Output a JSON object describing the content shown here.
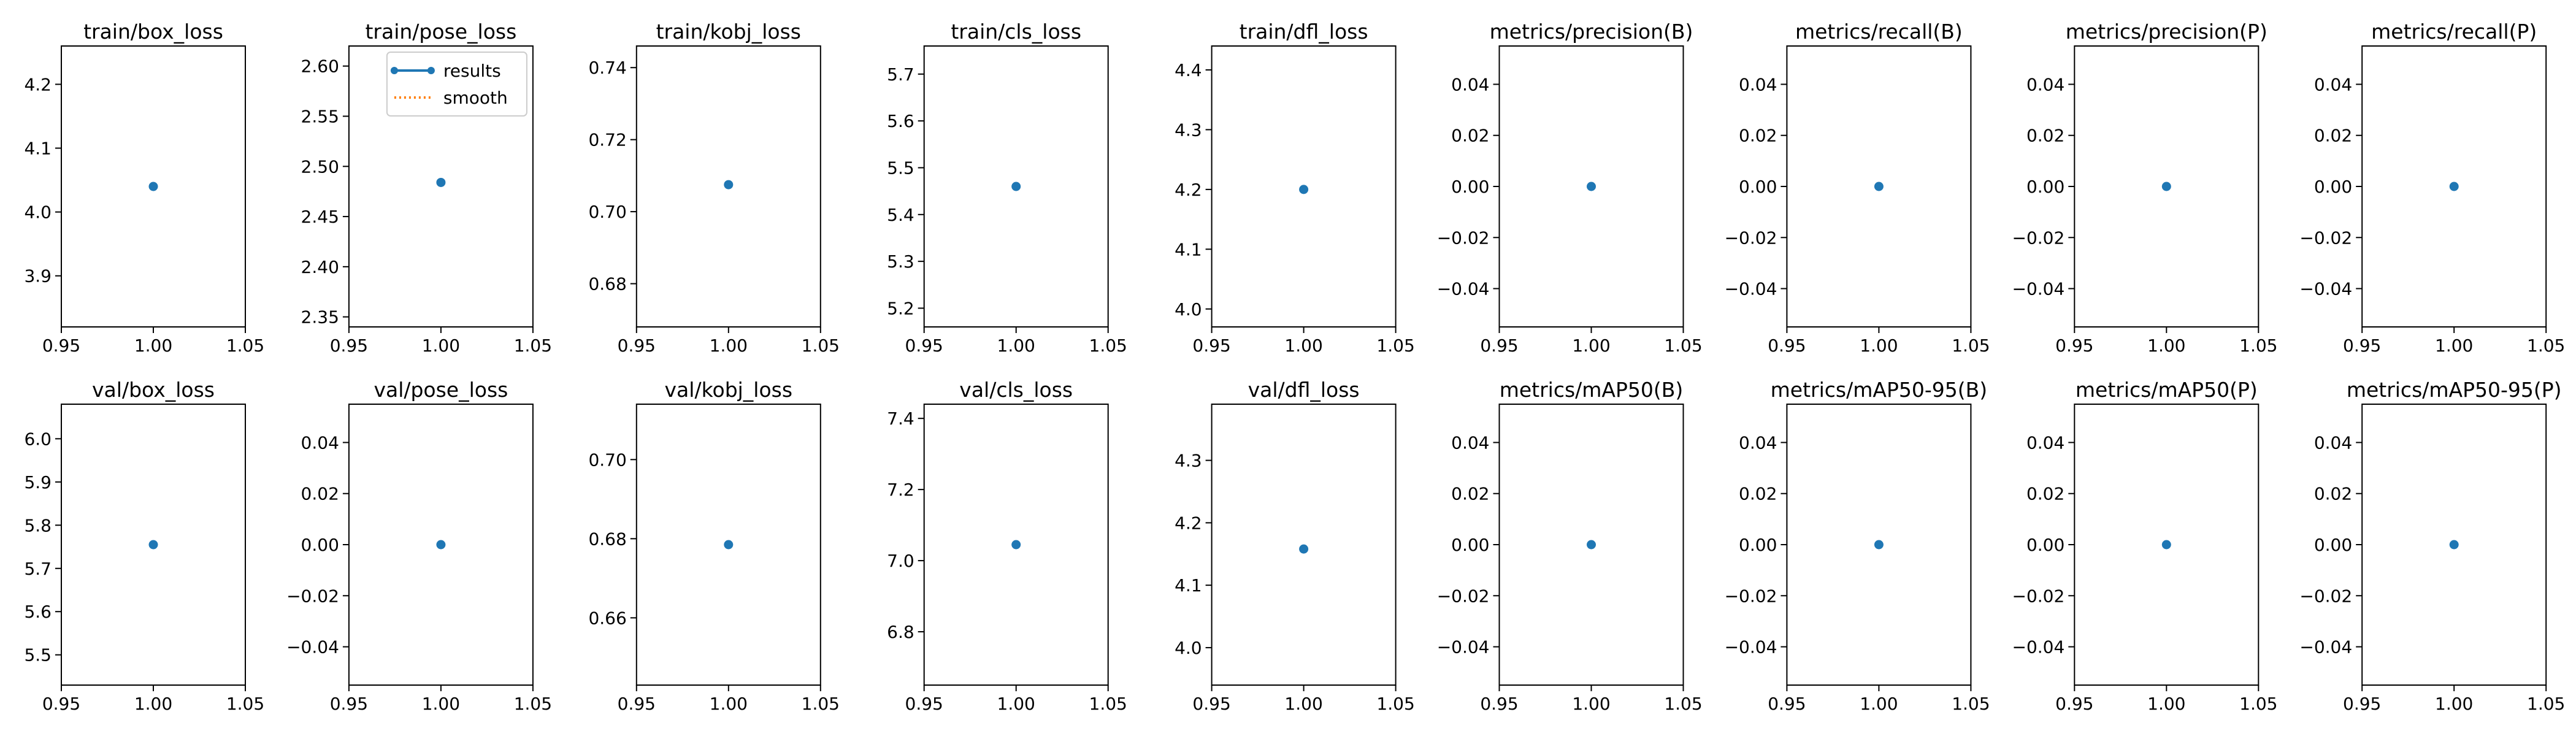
{
  "colors": {
    "results": "#1f77b4",
    "smooth": "#ff7f0e"
  },
  "legend": {
    "subplot_index": 1,
    "placement": "upper-right",
    "entries": [
      {
        "label": "results",
        "style": "line-marker",
        "color": "#1f77b4"
      },
      {
        "label": "smooth",
        "style": "dotted",
        "color": "#ff7f0e"
      }
    ]
  },
  "chart_data": [
    {
      "type": "scatter",
      "title": "train/box_loss",
      "x": [
        1
      ],
      "y": [
        4.04
      ],
      "xlim": [
        0.95,
        1.05
      ],
      "ylim": [
        3.82,
        4.26
      ],
      "xticks": [
        "0.95",
        "1.00",
        "1.05"
      ],
      "yticks": [
        "3.9",
        "4.0",
        "4.1",
        "4.2"
      ]
    },
    {
      "type": "scatter",
      "title": "train/pose_loss",
      "x": [
        1
      ],
      "y": [
        2.484
      ],
      "xlim": [
        0.95,
        1.05
      ],
      "ylim": [
        2.34,
        2.62
      ],
      "xticks": [
        "0.95",
        "1.00",
        "1.05"
      ],
      "yticks": [
        "2.35",
        "2.40",
        "2.45",
        "2.50",
        "2.55",
        "2.60"
      ]
    },
    {
      "type": "scatter",
      "title": "train/kobj_loss",
      "x": [
        1
      ],
      "y": [
        0.7075
      ],
      "xlim": [
        0.95,
        1.05
      ],
      "ylim": [
        0.668,
        0.746
      ],
      "xticks": [
        "0.95",
        "1.00",
        "1.05"
      ],
      "yticks": [
        "0.68",
        "0.70",
        "0.72",
        "0.74"
      ]
    },
    {
      "type": "scatter",
      "title": "train/cls_loss",
      "x": [
        1
      ],
      "y": [
        5.46
      ],
      "xlim": [
        0.95,
        1.05
      ],
      "ylim": [
        5.16,
        5.76
      ],
      "xticks": [
        "0.95",
        "1.00",
        "1.05"
      ],
      "yticks": [
        "5.2",
        "5.3",
        "5.4",
        "5.5",
        "5.6",
        "5.7"
      ]
    },
    {
      "type": "scatter",
      "title": "train/dfl_loss",
      "x": [
        1
      ],
      "y": [
        4.2
      ],
      "xlim": [
        0.95,
        1.05
      ],
      "ylim": [
        3.97,
        4.44
      ],
      "xticks": [
        "0.95",
        "1.00",
        "1.05"
      ],
      "yticks": [
        "4.0",
        "4.1",
        "4.2",
        "4.3",
        "4.4"
      ]
    },
    {
      "type": "scatter",
      "title": "metrics/precision(B)",
      "x": [
        1
      ],
      "y": [
        0
      ],
      "xlim": [
        0.95,
        1.05
      ],
      "ylim": [
        -0.055,
        0.055
      ],
      "xticks": [
        "0.95",
        "1.00",
        "1.05"
      ],
      "yticks": [
        "−0.04",
        "−0.02",
        "0.00",
        "0.02",
        "0.04"
      ]
    },
    {
      "type": "scatter",
      "title": "metrics/recall(B)",
      "x": [
        1
      ],
      "y": [
        0
      ],
      "xlim": [
        0.95,
        1.05
      ],
      "ylim": [
        -0.055,
        0.055
      ],
      "xticks": [
        "0.95",
        "1.00",
        "1.05"
      ],
      "yticks": [
        "−0.04",
        "−0.02",
        "0.00",
        "0.02",
        "0.04"
      ]
    },
    {
      "type": "scatter",
      "title": "metrics/precision(P)",
      "x": [
        1
      ],
      "y": [
        0
      ],
      "xlim": [
        0.95,
        1.05
      ],
      "ylim": [
        -0.055,
        0.055
      ],
      "xticks": [
        "0.95",
        "1.00",
        "1.05"
      ],
      "yticks": [
        "−0.04",
        "−0.02",
        "0.00",
        "0.02",
        "0.04"
      ]
    },
    {
      "type": "scatter",
      "title": "metrics/recall(P)",
      "x": [
        1
      ],
      "y": [
        0
      ],
      "xlim": [
        0.95,
        1.05
      ],
      "ylim": [
        -0.055,
        0.055
      ],
      "xticks": [
        "0.95",
        "1.00",
        "1.05"
      ],
      "yticks": [
        "−0.04",
        "−0.02",
        "0.00",
        "0.02",
        "0.04"
      ]
    },
    {
      "type": "scatter",
      "title": "val/box_loss",
      "x": [
        1
      ],
      "y": [
        5.755
      ],
      "xlim": [
        0.95,
        1.05
      ],
      "ylim": [
        5.43,
        6.08
      ],
      "xticks": [
        "0.95",
        "1.00",
        "1.05"
      ],
      "yticks": [
        "5.5",
        "5.6",
        "5.7",
        "5.8",
        "5.9",
        "6.0"
      ]
    },
    {
      "type": "scatter",
      "title": "val/pose_loss",
      "x": [
        1
      ],
      "y": [
        0
      ],
      "xlim": [
        0.95,
        1.05
      ],
      "ylim": [
        -0.055,
        0.055
      ],
      "xticks": [
        "0.95",
        "1.00",
        "1.05"
      ],
      "yticks": [
        "−0.04",
        "−0.02",
        "0.00",
        "0.02",
        "0.04"
      ]
    },
    {
      "type": "scatter",
      "title": "val/kobj_loss",
      "x": [
        1
      ],
      "y": [
        0.6785
      ],
      "xlim": [
        0.95,
        1.05
      ],
      "ylim": [
        0.643,
        0.714
      ],
      "xticks": [
        "0.95",
        "1.00",
        "1.05"
      ],
      "yticks": [
        "0.66",
        "0.68",
        "0.70"
      ]
    },
    {
      "type": "scatter",
      "title": "val/cls_loss",
      "x": [
        1
      ],
      "y": [
        7.045
      ],
      "xlim": [
        0.95,
        1.05
      ],
      "ylim": [
        6.65,
        7.44
      ],
      "xticks": [
        "0.95",
        "1.00",
        "1.05"
      ],
      "yticks": [
        "6.8",
        "7.0",
        "7.2",
        "7.4"
      ]
    },
    {
      "type": "scatter",
      "title": "val/dfl_loss",
      "x": [
        1
      ],
      "y": [
        4.158
      ],
      "xlim": [
        0.95,
        1.05
      ],
      "ylim": [
        3.94,
        4.39
      ],
      "xticks": [
        "0.95",
        "1.00",
        "1.05"
      ],
      "yticks": [
        "4.0",
        "4.1",
        "4.2",
        "4.3"
      ]
    },
    {
      "type": "scatter",
      "title": "metrics/mAP50(B)",
      "x": [
        1
      ],
      "y": [
        0
      ],
      "xlim": [
        0.95,
        1.05
      ],
      "ylim": [
        -0.055,
        0.055
      ],
      "xticks": [
        "0.95",
        "1.00",
        "1.05"
      ],
      "yticks": [
        "−0.04",
        "−0.02",
        "0.00",
        "0.02",
        "0.04"
      ]
    },
    {
      "type": "scatter",
      "title": "metrics/mAP50-95(B)",
      "x": [
        1
      ],
      "y": [
        0
      ],
      "xlim": [
        0.95,
        1.05
      ],
      "ylim": [
        -0.055,
        0.055
      ],
      "xticks": [
        "0.95",
        "1.00",
        "1.05"
      ],
      "yticks": [
        "−0.04",
        "−0.02",
        "0.00",
        "0.02",
        "0.04"
      ]
    },
    {
      "type": "scatter",
      "title": "metrics/mAP50(P)",
      "x": [
        1
      ],
      "y": [
        0
      ],
      "xlim": [
        0.95,
        1.05
      ],
      "ylim": [
        -0.055,
        0.055
      ],
      "xticks": [
        "0.95",
        "1.00",
        "1.05"
      ],
      "yticks": [
        "−0.04",
        "−0.02",
        "0.00",
        "0.02",
        "0.04"
      ]
    },
    {
      "type": "scatter",
      "title": "metrics/mAP50-95(P)",
      "x": [
        1
      ],
      "y": [
        0
      ],
      "xlim": [
        0.95,
        1.05
      ],
      "ylim": [
        -0.055,
        0.055
      ],
      "xticks": [
        "0.95",
        "1.00",
        "1.05"
      ],
      "yticks": [
        "−0.04",
        "−0.02",
        "0.00",
        "0.02",
        "0.04"
      ]
    }
  ]
}
